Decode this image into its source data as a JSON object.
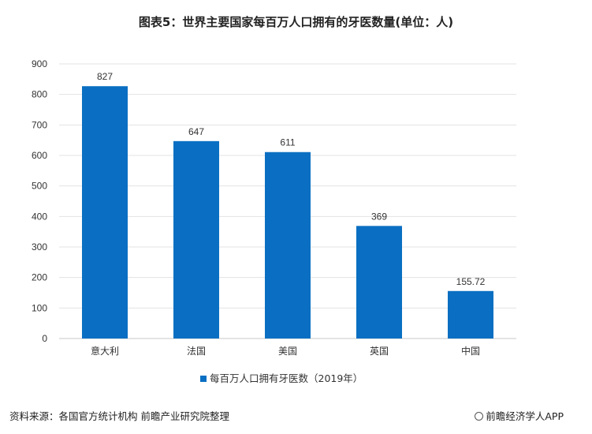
{
  "chart_data": {
    "type": "bar",
    "title": "图表5：世界主要国家每百万人口拥有的牙医数量(单位：人)",
    "categories": [
      "意大利",
      "法国",
      "美国",
      "英国",
      "中国"
    ],
    "series": [
      {
        "name": "每百万人口拥有牙医数（2019年）",
        "values": [
          827,
          647,
          611,
          369,
          155.72
        ]
      }
    ],
    "data_labels": [
      "827",
      "647",
      "611",
      "369",
      "155.72"
    ],
    "y_ticks": [
      0,
      100,
      200,
      300,
      400,
      500,
      600,
      700,
      800,
      900
    ],
    "ylim": [
      0,
      900
    ],
    "grid": true,
    "legend_position": "bottom",
    "bar_color": "#0a6fc2"
  },
  "footer": {
    "source": "资料来源：各国官方统计机构 前瞻产业研究院整理",
    "brand": "前瞻经济学人APP"
  }
}
